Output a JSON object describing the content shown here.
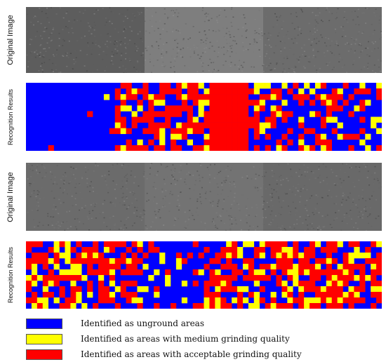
{
  "rows": [
    {
      "kind": "photo",
      "label": "Original Image",
      "segments": [
        {
          "tone": "#5d5d5d"
        },
        {
          "tone": "#7e7e7e"
        },
        {
          "tone": "#6c6c6c"
        }
      ]
    },
    {
      "kind": "grid",
      "label": "Recognition Results",
      "pattern": "mostly-blue-left-red-center"
    },
    {
      "kind": "photo",
      "label": "Original Image",
      "segments": [
        {
          "tone": "#6b6b6b"
        },
        {
          "tone": "#737373"
        },
        {
          "tone": "#696969"
        }
      ]
    },
    {
      "kind": "grid",
      "label": "Recognition Results",
      "pattern": "mixed"
    }
  ],
  "colors": {
    "unground": "#0000ff",
    "medium": "#ffff00",
    "acceptable": "#ff0000"
  },
  "legend": [
    {
      "color": "#0000ff",
      "label": "Identified as unground areas"
    },
    {
      "color": "#ffff00",
      "label": "Identified as areas with medium grinding quality"
    },
    {
      "color": "#ff0000",
      "label": "Identified as areas with acceptable grinding quality"
    }
  ]
}
